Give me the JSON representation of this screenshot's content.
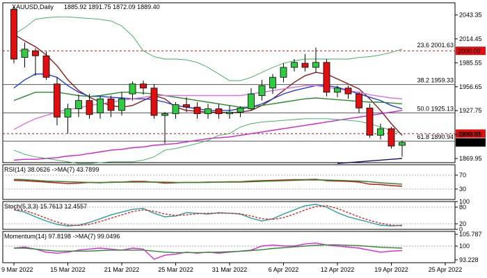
{
  "symbol_header": "XAUUSD,Daily",
  "ohlc_header": "1885.92 1891.75 1872.09 1889.40",
  "colors": {
    "up": "#2ecc40",
    "down": "#e01010",
    "ma_maroon": "#8b1a1a",
    "ma_blue": "#1f3fe0",
    "ma_green": "#2a8a2a",
    "ma_pink": "#e070e0",
    "ma_magenta": "#d020d0",
    "ma_navy": "#10107a",
    "bb": "#3aaa5a",
    "rsi_line": "#cc1010",
    "rsi_ma": "#2a8a2a",
    "stoch_main": "#20a0a0",
    "stoch_signal": "#e02020",
    "mom_line": "#e020e0",
    "mom_ma": "#2a8a2a"
  },
  "chart_data": [
    {
      "type": "candlestick",
      "panel": "price",
      "ylim": [
        1865,
        2058
      ],
      "y_ticks": [
        2043.35,
        2014.45,
        1985.55,
        1956.65,
        1927.75,
        1898.85,
        1869.95
      ],
      "x_tick_labels": [
        {
          "i": 0,
          "label": "9 Mar 2022"
        },
        {
          "i": 5,
          "label": "15 Mar 2022"
        },
        {
          "i": 10,
          "label": "21 Mar 2022"
        },
        {
          "i": 15,
          "label": "25 Mar 2022"
        },
        {
          "i": 20,
          "label": "31 Mar 2022"
        },
        {
          "i": 25,
          "label": "6 Apr 2022"
        },
        {
          "i": 30,
          "label": "12 Apr 2022"
        },
        {
          "i": 35,
          "label": "19 Apr 2022"
        },
        {
          "i": 40,
          "label": "25 Apr 2022"
        }
      ],
      "candles": [
        {
          "o": 2050,
          "h": 2054,
          "l": 1985,
          "c": 1990
        },
        {
          "o": 1992,
          "h": 2010,
          "l": 1980,
          "c": 2002
        },
        {
          "o": 2000,
          "h": 2003,
          "l": 1970,
          "c": 1994
        },
        {
          "o": 1994,
          "h": 1999,
          "l": 1965,
          "c": 1968
        },
        {
          "o": 1960,
          "h": 1968,
          "l": 1910,
          "c": 1920
        },
        {
          "o": 1920,
          "h": 1936,
          "l": 1900,
          "c": 1930
        },
        {
          "o": 1930,
          "h": 1947,
          "l": 1920,
          "c": 1940
        },
        {
          "o": 1940,
          "h": 1948,
          "l": 1918,
          "c": 1923
        },
        {
          "o": 1925,
          "h": 1945,
          "l": 1918,
          "c": 1942
        },
        {
          "o": 1942,
          "h": 1946,
          "l": 1920,
          "c": 1928
        },
        {
          "o": 1928,
          "h": 1950,
          "l": 1922,
          "c": 1942
        },
        {
          "o": 1948,
          "h": 1963,
          "l": 1940,
          "c": 1960
        },
        {
          "o": 1960,
          "h": 1964,
          "l": 1947,
          "c": 1955
        },
        {
          "o": 1955,
          "h": 1960,
          "l": 1918,
          "c": 1922
        },
        {
          "o": 1922,
          "h": 1926,
          "l": 1888,
          "c": 1924
        },
        {
          "o": 1924,
          "h": 1938,
          "l": 1918,
          "c": 1935
        },
        {
          "o": 1935,
          "h": 1944,
          "l": 1926,
          "c": 1932
        },
        {
          "o": 1932,
          "h": 1938,
          "l": 1918,
          "c": 1924
        },
        {
          "o": 1924,
          "h": 1936,
          "l": 1918,
          "c": 1930
        },
        {
          "o": 1930,
          "h": 1936,
          "l": 1918,
          "c": 1924
        },
        {
          "o": 1924,
          "h": 1934,
          "l": 1918,
          "c": 1926
        },
        {
          "o": 1926,
          "h": 1933,
          "l": 1920,
          "c": 1931
        },
        {
          "o": 1930,
          "h": 1955,
          "l": 1928,
          "c": 1948
        },
        {
          "o": 1946,
          "h": 1965,
          "l": 1940,
          "c": 1958
        },
        {
          "o": 1955,
          "h": 1972,
          "l": 1948,
          "c": 1968
        },
        {
          "o": 1968,
          "h": 1985,
          "l": 1962,
          "c": 1980
        },
        {
          "o": 1980,
          "h": 1990,
          "l": 1975,
          "c": 1986
        },
        {
          "o": 1985,
          "h": 1996,
          "l": 1975,
          "c": 1980
        },
        {
          "o": 1980,
          "h": 2004,
          "l": 1974,
          "c": 1986
        },
        {
          "o": 1986,
          "h": 1990,
          "l": 1945,
          "c": 1950
        },
        {
          "o": 1950,
          "h": 1958,
          "l": 1944,
          "c": 1955
        },
        {
          "o": 1955,
          "h": 1958,
          "l": 1942,
          "c": 1948
        },
        {
          "o": 1948,
          "h": 1950,
          "l": 1925,
          "c": 1931
        },
        {
          "o": 1931,
          "h": 1936,
          "l": 1895,
          "c": 1898
        },
        {
          "o": 1898,
          "h": 1912,
          "l": 1893,
          "c": 1906
        },
        {
          "o": 1906,
          "h": 1908,
          "l": 1882,
          "c": 1885
        },
        {
          "o": 1885.92,
          "h": 1891.75,
          "l": 1872.09,
          "c": 1889.4
        }
      ],
      "overlays": [
        {
          "name": "",
          "color": "ma_maroon",
          "values": [
            2020,
            2012,
            2005,
            1995,
            1982,
            1965,
            1952,
            1944,
            1938,
            1934,
            1932,
            1934,
            1940,
            1946,
            1942,
            1932,
            1928,
            1927,
            1926,
            1926,
            1925,
            1926,
            1928,
            1934,
            1942,
            1952,
            1962,
            1970,
            1974,
            1972,
            1966,
            1960,
            1954,
            1942,
            1928,
            1912,
            1898
          ]
        },
        {
          "name": "",
          "color": "ma_blue",
          "values": [
            1955,
            1965,
            1972,
            1972,
            1968,
            1958,
            1950,
            1945,
            1945,
            1944,
            1943,
            1942,
            1942,
            1941,
            1938,
            1934,
            1932,
            1930,
            1928,
            1928,
            1928,
            1930,
            1932,
            1936,
            1942,
            1948,
            1952,
            1955,
            1958,
            1958,
            1956,
            1952,
            1948,
            1944,
            1940,
            1934,
            1930
          ]
        },
        {
          "name": "",
          "color": "ma_green",
          "values": [
            1940,
            1945,
            1950,
            1950,
            1950,
            1948,
            1946,
            1945,
            1946,
            1948,
            1950,
            1950,
            1949,
            1948,
            1946,
            1944,
            1942,
            1940,
            1938,
            1936,
            1934,
            1932,
            1932,
            1934,
            1936,
            1938,
            1940,
            1942,
            1943,
            1942,
            1941,
            1940,
            1939,
            1938,
            1938,
            1937,
            1936
          ]
        },
        {
          "name": "",
          "color": "ma_pink",
          "values": [
            1905,
            1912,
            1918,
            1922,
            1926,
            1929,
            1931,
            1934,
            1936,
            1938,
            1940,
            1942,
            1944,
            1946,
            1946,
            1946,
            1946,
            1946,
            1946,
            1946,
            1946,
            1946,
            1948,
            1950,
            1952,
            1954,
            1956,
            1958,
            1958,
            1956,
            1954,
            1952,
            1950,
            1947,
            1945,
            1943,
            1942
          ]
        },
        {
          "name": "",
          "color": "ma_magenta",
          "values": [
            1868,
            1869,
            1869,
            1870,
            1871,
            1873,
            1874,
            1876,
            1878,
            1880,
            1881,
            1883,
            1884,
            1886,
            1887,
            1888,
            1890,
            1892,
            1894,
            1895,
            1896,
            1898,
            1900,
            1902,
            1904,
            1906,
            1908,
            1910,
            1912,
            1914,
            1916,
            1918,
            1920,
            1922,
            1924,
            1926,
            1928
          ]
        },
        {
          "name": "",
          "color": "ma_navy",
          "values": [
            null,
            null,
            null,
            null,
            null,
            null,
            null,
            null,
            null,
            null,
            null,
            null,
            null,
            null,
            null,
            null,
            null,
            null,
            null,
            null,
            null,
            null,
            null,
            null,
            null,
            null,
            null,
            null,
            null,
            null,
            1864,
            1865,
            1866,
            1867,
            1868,
            1869,
            1870
          ]
        },
        {
          "name": "",
          "color": "bb",
          "values": [
            2020,
            2028,
            2038,
            2040,
            2041,
            2041,
            2040,
            2039,
            2038,
            2036,
            2030,
            2018,
            2000,
            1993,
            1990,
            1990,
            1989,
            1986,
            1980,
            1972,
            1964,
            1964,
            1968,
            1974,
            1980,
            1985,
            1988,
            1990,
            1990,
            1990,
            1990,
            1990,
            1992,
            1993,
            1995,
            1998,
            2002
          ]
        },
        {
          "name": "",
          "color": "bb",
          "values": [
            1880,
            1875,
            1872,
            1870,
            1868,
            1866,
            1864,
            1864,
            1865,
            1866,
            1866,
            1866,
            1868,
            1872,
            1880,
            1882,
            1885,
            1888,
            1892,
            1898,
            1900,
            1908,
            1912,
            1914,
            1915,
            1916,
            1917,
            1918,
            1918,
            1918,
            1917,
            1916,
            1915,
            1912,
            1908,
            1904,
            1900
          ]
        }
      ],
      "hlines": [
        {
          "value": 2000,
          "color": "#c01010",
          "dash": true,
          "label": "23.6 2001.63",
          "badge": "2000.00",
          "label_value": 2001.63
        },
        {
          "value": 1959.33,
          "color": "#555555",
          "dash": false,
          "label": "38.2 1959.33"
        },
        {
          "value": 1925.13,
          "color": "#555555",
          "dash": false,
          "label": "50.0 1925.13"
        },
        {
          "value": 1900,
          "color": "#c01010",
          "dash": true,
          "badge": "1900.00"
        },
        {
          "value": 1890.94,
          "color": "#555555",
          "dash": false,
          "label": "61.8 1890.94"
        }
      ],
      "last_price": "1889.40",
      "last_price_value": 1889.4
    },
    {
      "type": "line",
      "panel": "rsi",
      "header": "RSI(14) 38.0626 ->MA(7) 43.7899",
      "ylim": [
        0,
        100
      ],
      "y_ticks": [
        70,
        30
      ],
      "levels": [
        70,
        30
      ],
      "series": [
        {
          "color": "rsi_line",
          "values": [
            55,
            54,
            52,
            50,
            48,
            46,
            47,
            49,
            48,
            50,
            50,
            52,
            52,
            50,
            47,
            48,
            49,
            49,
            50,
            50,
            51,
            51,
            53,
            54,
            55,
            56,
            57,
            57,
            58,
            54,
            53,
            52,
            50,
            44,
            43,
            40,
            38
          ]
        },
        {
          "color": "rsi_ma",
          "values": [
            58,
            57,
            55,
            53,
            52,
            51,
            50,
            49,
            49,
            49,
            50,
            50,
            50,
            50,
            50,
            49,
            49,
            49,
            49,
            50,
            50,
            50,
            51,
            52,
            53,
            54,
            55,
            56,
            56,
            56,
            55,
            54,
            53,
            51,
            48,
            46,
            44
          ]
        }
      ]
    },
    {
      "type": "line",
      "panel": "stoch",
      "header": "Stoch(5,3,3) 15.7613 12.4557",
      "ylim": [
        0,
        100
      ],
      "y_ticks": [
        100,
        80,
        20,
        0
      ],
      "levels": [
        80,
        20
      ],
      "series": [
        {
          "color": "stoch_main",
          "values": [
            70,
            62,
            45,
            30,
            18,
            12,
            15,
            25,
            38,
            52,
            62,
            72,
            75,
            58,
            45,
            48,
            60,
            58,
            55,
            60,
            58,
            55,
            40,
            30,
            38,
            55,
            70,
            85,
            90,
            80,
            60,
            45,
            35,
            25,
            15,
            12,
            15
          ]
        },
        {
          "color": "stoch_signal",
          "dash": true,
          "values": [
            72,
            68,
            55,
            40,
            26,
            16,
            14,
            18,
            28,
            40,
            52,
            64,
            70,
            65,
            55,
            50,
            52,
            56,
            58,
            58,
            58,
            56,
            48,
            38,
            36,
            42,
            55,
            70,
            82,
            85,
            75,
            60,
            45,
            32,
            22,
            15,
            13
          ]
        }
      ]
    },
    {
      "type": "line",
      "panel": "momentum",
      "header": "Momentum(14) 97.8198 ->MA(7) 99.0496",
      "ylim": [
        91.8,
        107.2
      ],
      "y_ticks": [
        105.787,
        100,
        93.228
      ],
      "levels": [
        100
      ],
      "series": [
        {
          "color": "mom_line",
          "values": [
            99,
            99.5,
            98.5,
            97,
            96.5,
            97,
            98,
            98.5,
            99,
            98.5,
            98,
            99,
            98.5,
            93.5,
            95.5,
            96,
            97,
            96.5,
            97,
            96.5,
            97,
            97.5,
            98,
            100,
            100.5,
            100,
            100,
            101,
            101.5,
            100.5,
            100,
            99.5,
            99,
            98,
            97,
            97.5,
            97.8
          ]
        },
        {
          "color": "mom_ma",
          "values": [
            99,
            99,
            98.5,
            98,
            97.5,
            97.5,
            97.5,
            97.5,
            97.8,
            98,
            98,
            98,
            98,
            97.5,
            97,
            96.8,
            96.8,
            96.8,
            96.9,
            97,
            97.2,
            97.4,
            97.8,
            98.2,
            98.8,
            99.2,
            99.6,
            100,
            100.4,
            100.6,
            100.6,
            100.4,
            100.2,
            99.8,
            99.4,
            99.2,
            99
          ]
        }
      ]
    }
  ]
}
